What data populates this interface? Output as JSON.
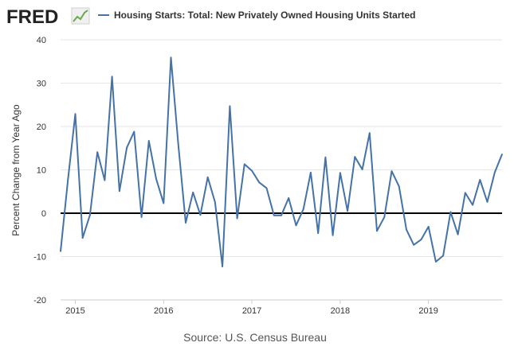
{
  "brand": {
    "logo_text": "FRED",
    "logo_icon": "line-chart-icon"
  },
  "chart_data": {
    "type": "line",
    "title": "Housing Starts: Total: New Privately Owned Housing Units Started",
    "ylabel": "Percent Change from Year Ago",
    "xlabel": "",
    "source": "Source: U.S. Census Bureau",
    "ylim": [
      -20,
      40
    ],
    "yticks": [
      40,
      30,
      20,
      10,
      0,
      -10,
      -20
    ],
    "xlim": [
      "2014-11",
      "2019-11"
    ],
    "xticks": [
      {
        "date": "2015-01",
        "label": "2015"
      },
      {
        "date": "2016-01",
        "label": "2016"
      },
      {
        "date": "2017-01",
        "label": "2017"
      },
      {
        "date": "2018-01",
        "label": "2018"
      },
      {
        "date": "2019-01",
        "label": "2019"
      }
    ],
    "grid": true,
    "zero_line": true,
    "legend_position": "top",
    "series": [
      {
        "name": "Housing Starts: Total: New Privately Owned Housing Units Started",
        "color": "#4572a7",
        "x": [
          "2014-11",
          "2014-12",
          "2015-01",
          "2015-02",
          "2015-03",
          "2015-04",
          "2015-05",
          "2015-06",
          "2015-07",
          "2015-08",
          "2015-09",
          "2015-10",
          "2015-11",
          "2015-12",
          "2016-01",
          "2016-02",
          "2016-03",
          "2016-04",
          "2016-05",
          "2016-06",
          "2016-07",
          "2016-08",
          "2016-09",
          "2016-10",
          "2016-11",
          "2016-12",
          "2017-01",
          "2017-02",
          "2017-03",
          "2017-04",
          "2017-05",
          "2017-06",
          "2017-07",
          "2017-08",
          "2017-09",
          "2017-10",
          "2017-11",
          "2017-12",
          "2018-01",
          "2018-02",
          "2018-03",
          "2018-04",
          "2018-05",
          "2018-06",
          "2018-07",
          "2018-08",
          "2018-09",
          "2018-10",
          "2018-11",
          "2018-12",
          "2019-01",
          "2019-02",
          "2019-03",
          "2019-04",
          "2019-05",
          "2019-06",
          "2019-07",
          "2019-08",
          "2019-09",
          "2019-10",
          "2019-11"
        ],
        "values": [
          -8.8,
          7.6,
          22.9,
          -5.7,
          -0.4,
          14.1,
          7.6,
          31.5,
          5.1,
          15.1,
          18.8,
          -0.9,
          16.7,
          7.9,
          2.3,
          35.9,
          15.9,
          -2.2,
          4.8,
          -0.4,
          8.3,
          2.5,
          -12.3,
          24.7,
          -1.2,
          11.3,
          9.8,
          7.1,
          5.8,
          -0.5,
          -0.5,
          3.5,
          -2.8,
          0.9,
          9.4,
          -4.6,
          12.9,
          -5.1,
          9.3,
          0.5,
          13.0,
          10.1,
          18.5,
          -4.1,
          -0.9,
          9.7,
          6.2,
          -3.8,
          -7.3,
          -6.1,
          -3.1,
          -11.2,
          -9.8,
          0.3,
          -4.9,
          4.7,
          1.9,
          7.7,
          2.6,
          9.4,
          13.6
        ]
      }
    ]
  }
}
